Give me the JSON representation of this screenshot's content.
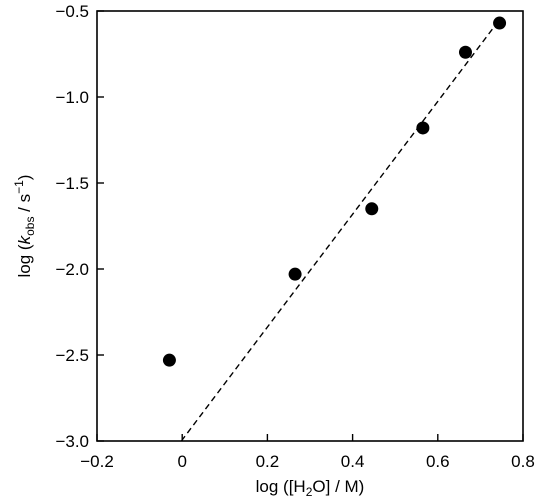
{
  "chart_data": {
    "type": "scatter",
    "xlabel": "log ([H₂O] / M)",
    "ylabel": "log (kobs / s⁻¹)",
    "xlim": [
      -0.2,
      0.8
    ],
    "ylim": [
      -3.0,
      -0.5
    ],
    "x_ticks": [
      -0.2,
      0,
      0.2,
      0.4,
      0.6,
      0.8
    ],
    "x_tick_labels": [
      "−0.2",
      "0",
      "0.2",
      "0.4",
      "0.6",
      "0.8"
    ],
    "y_ticks": [
      -3.0,
      -2.5,
      -2.0,
      -1.5,
      -1.0,
      -0.5
    ],
    "y_tick_labels": [
      "−3.0",
      "−2.5",
      "−2.0",
      "−1.5",
      "−1.0",
      "−0.5"
    ],
    "grid": false,
    "series": [
      {
        "points": [
          {
            "x": -0.03,
            "y": -2.53
          },
          {
            "x": 0.265,
            "y": -2.03
          },
          {
            "x": 0.445,
            "y": -1.65
          },
          {
            "x": 0.565,
            "y": -1.18
          },
          {
            "x": 0.665,
            "y": -0.74
          },
          {
            "x": 0.745,
            "y": -0.57
          }
        ],
        "color": "#000000"
      }
    ],
    "fit_line": {
      "style": "dashed",
      "color": "#000000",
      "x": [
        -0.002,
        0.745
      ],
      "y": [
        -3.0,
        -0.55
      ]
    }
  }
}
